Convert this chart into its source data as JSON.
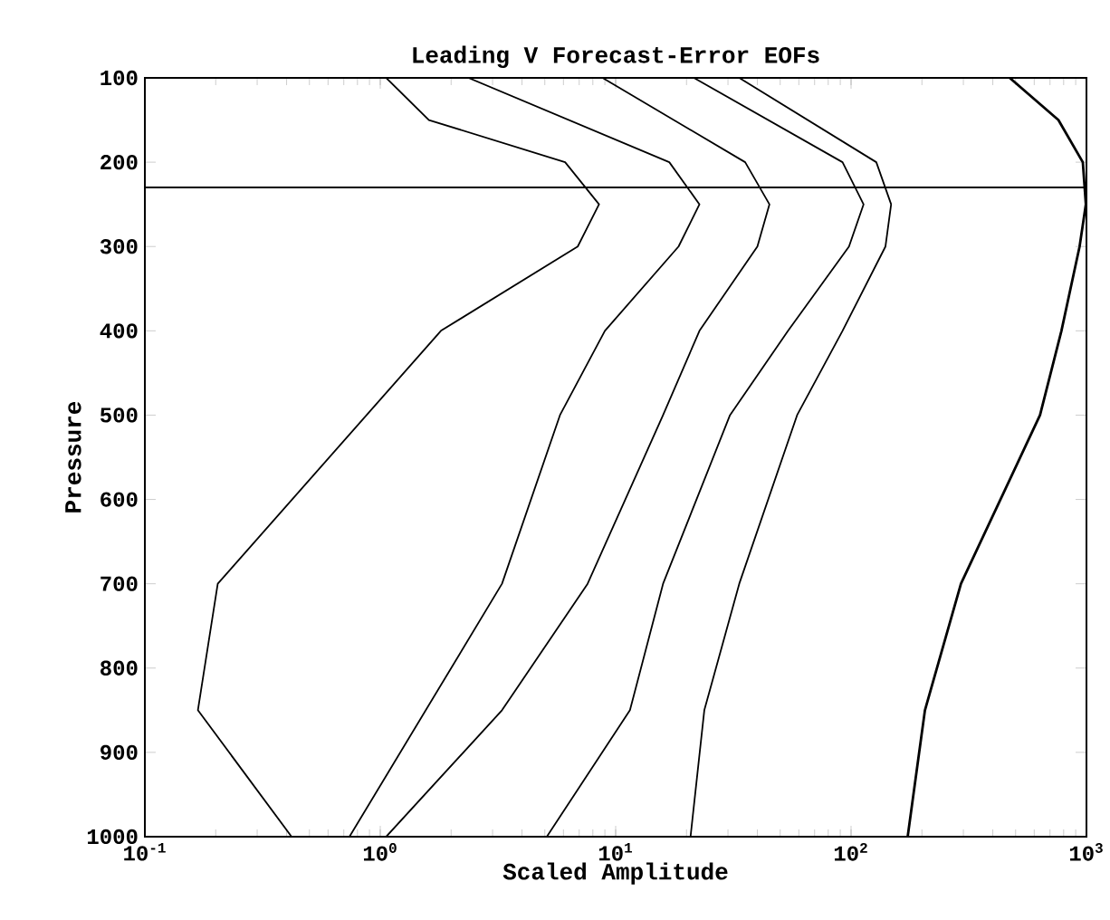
{
  "chart_data": {
    "type": "line",
    "title": "Leading V Forecast-Error EOFs",
    "xlabel": "Scaled Amplitude",
    "ylabel": "Pressure",
    "log": "x",
    "xlim": [
      0.1,
      1000
    ],
    "ylim": [
      1000,
      100
    ],
    "xticks": [
      {
        "value": 0.1,
        "label": "10$^{-1}$"
      },
      {
        "value": 1,
        "label": "10$^{0}$"
      },
      {
        "value": 10,
        "label": "10$^{1}$"
      },
      {
        "value": 100,
        "label": "10$^{2}$"
      },
      {
        "value": 1000,
        "label": "10$^{3}$"
      }
    ],
    "yticks": [
      100,
      200,
      300,
      400,
      500,
      600,
      700,
      800,
      900,
      1000
    ],
    "grid": false,
    "marker": "none",
    "line_style": "solid",
    "ref_lines": [
      {
        "axis": "y",
        "value": 230
      }
    ],
    "series": [
      {
        "color": "#000000",
        "x": [
          1.06,
          1.61,
          6.1,
          8.5,
          6.9,
          1.81,
          0.204,
          0.168,
          0.42
        ],
        "values": [
          100,
          150,
          200,
          250,
          300,
          400,
          700,
          850,
          1000
        ]
      },
      {
        "color": "#000000",
        "x": [
          2.37,
          16.9,
          22.7,
          18.5,
          9.0,
          5.8,
          3.29,
          0.74
        ],
        "values": [
          100,
          200,
          250,
          300,
          400,
          500,
          700,
          1000
        ]
      },
      {
        "color": "#000000",
        "x": [
          8.8,
          35.5,
          45,
          40,
          22.7,
          15.9,
          7.6,
          3.29,
          1.06
        ],
        "values": [
          100,
          200,
          250,
          300,
          400,
          500,
          700,
          850,
          1000
        ]
      },
      {
        "color": "#000000",
        "x": [
          21.5,
          92,
          113,
          98,
          54,
          30.6,
          15.9,
          11.5,
          5.1
        ],
        "values": [
          100,
          200,
          250,
          300,
          400,
          500,
          700,
          850,
          1000
        ]
      },
      {
        "color": "#000000",
        "x": [
          33.5,
          128,
          148,
          140,
          92,
          59,
          33.5,
          23.8,
          20.8
        ],
        "values": [
          100,
          200,
          250,
          300,
          400,
          500,
          700,
          850,
          1000
        ]
      },
      {
        "color": "#000000",
        "x": [
          472,
          760,
          965,
          994,
          935,
          783,
          635,
          293,
          206,
          174
        ],
        "values": [
          100,
          150,
          200,
          250,
          300,
          400,
          500,
          700,
          850,
          1000
        ]
      }
    ]
  }
}
